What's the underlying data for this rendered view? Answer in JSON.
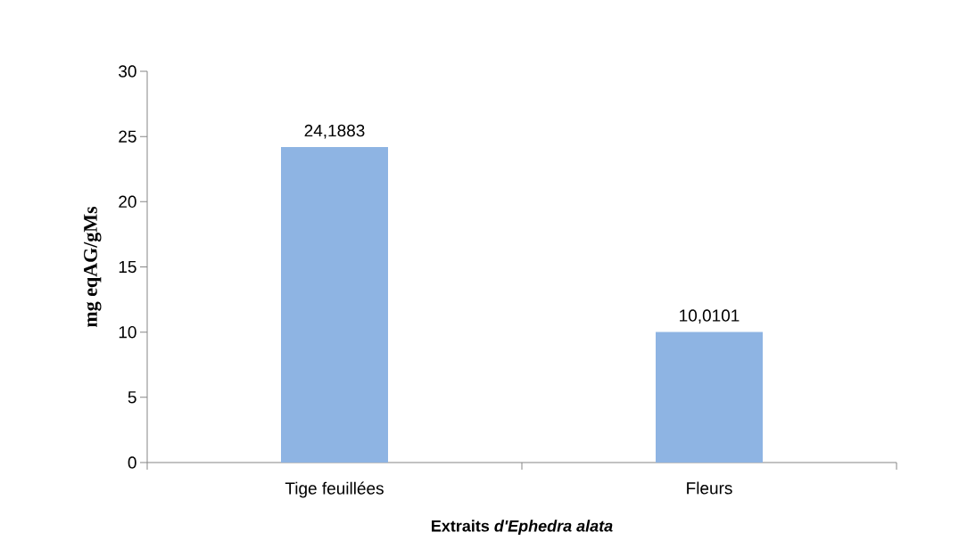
{
  "chart_data": {
    "type": "bar",
    "xlabel": "Extraits *d'Ephedra alata*",
    "ylabel": "mg eqAG/gMs",
    "categories": [
      "Tige feuillées",
      "Fleurs"
    ],
    "values": [
      24.1883,
      10.0101
    ],
    "value_labels": [
      "24,1883",
      "10,0101"
    ],
    "color": "#8eb4e3",
    "ylim": [
      0,
      30
    ],
    "yticks": [
      0,
      5,
      10,
      15,
      20,
      25,
      30
    ],
    "grid": false
  }
}
